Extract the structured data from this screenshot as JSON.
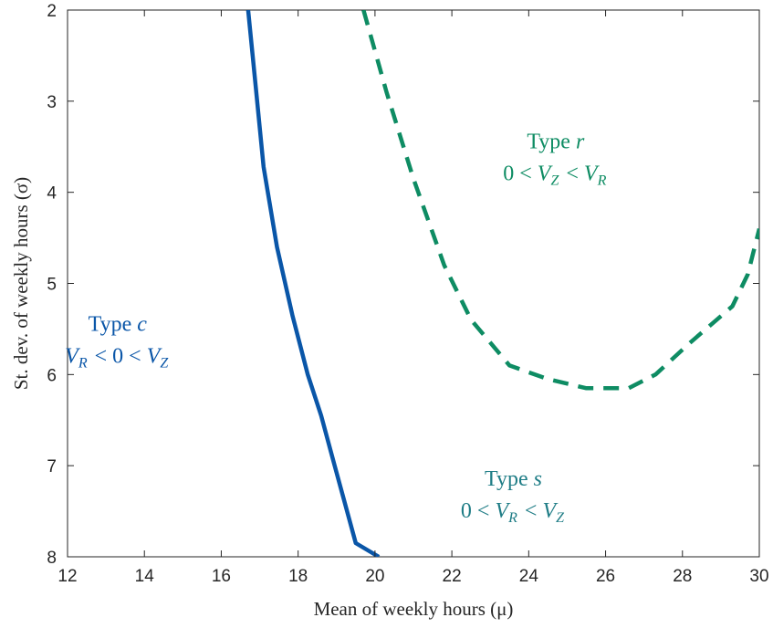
{
  "chart_data": {
    "type": "line",
    "xlabel": "Mean of weekly hours (μ)",
    "ylabel": "St. dev. of weekly hours (σ)",
    "xlim": [
      12,
      30
    ],
    "ylim": [
      2,
      8
    ],
    "y_reversed": true,
    "x_ticks": [
      12,
      14,
      16,
      18,
      20,
      22,
      24,
      26,
      28,
      30
    ],
    "y_ticks": [
      2,
      3,
      4,
      5,
      6,
      7,
      8
    ],
    "grid": false,
    "series": [
      {
        "style": "solid",
        "color": "#0a56a8",
        "points": [
          [
            16.7,
            2.0
          ],
          [
            16.9,
            2.85
          ],
          [
            17.1,
            3.72
          ],
          [
            17.45,
            4.6
          ],
          [
            17.85,
            5.35
          ],
          [
            18.25,
            6.0
          ],
          [
            18.6,
            6.45
          ],
          [
            18.95,
            7.0
          ],
          [
            19.5,
            7.85
          ],
          [
            20.1,
            8.0
          ]
        ]
      },
      {
        "style": "dashed",
        "color": "#0e8c63",
        "points": [
          [
            19.7,
            2.0
          ],
          [
            20.3,
            2.9
          ],
          [
            21.0,
            3.85
          ],
          [
            21.8,
            4.8
          ],
          [
            22.5,
            5.4
          ],
          [
            23.5,
            5.9
          ],
          [
            24.5,
            6.05
          ],
          [
            25.5,
            6.15
          ],
          [
            26.6,
            6.15
          ],
          [
            27.3,
            6.0
          ],
          [
            28.2,
            5.65
          ],
          [
            29.3,
            5.25
          ],
          [
            29.7,
            4.9
          ],
          [
            30.0,
            4.4
          ]
        ]
      }
    ],
    "annotations": [
      {
        "name": "type-c",
        "title_text": "Type ",
        "title_var": "c",
        "cond": [
          "V",
          "R",
          " < 0 < ",
          "V",
          "Z"
        ],
        "color": "#0a56a8",
        "x": 13.3,
        "y": 5.6
      },
      {
        "name": "type-r",
        "title_text": "Type ",
        "title_var": "r",
        "cond": [
          "0 < ",
          "V",
          "Z",
          " < ",
          "V",
          "R"
        ],
        "color": "#0e8c63",
        "x": 24.7,
        "y": 3.6
      },
      {
        "name": "type-s",
        "title_text": "Type ",
        "title_var": "s",
        "cond": [
          "0 < ",
          "V",
          "R",
          " < ",
          "V",
          "Z"
        ],
        "color": "#1f7d86",
        "x": 23.6,
        "y": 7.3
      }
    ]
  }
}
